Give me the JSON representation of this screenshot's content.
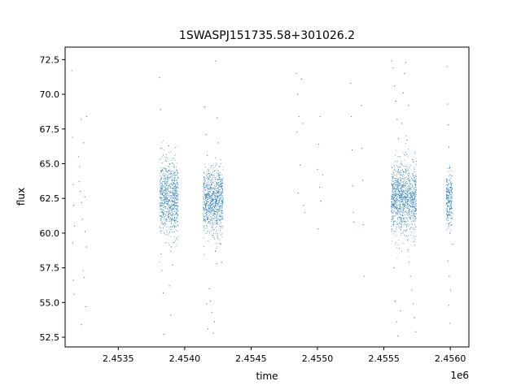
{
  "chart_data": {
    "type": "scatter",
    "title": "1SWASPJ151735.58+301026.2",
    "xlabel": "time",
    "ylabel": "flux",
    "x_offset_label": "1e6",
    "xlim": [
      2453100,
      2456140
    ],
    "ylim": [
      51.8,
      73.4
    ],
    "x_ticks": [
      2453500,
      2454000,
      2454500,
      2455000,
      2455500,
      2456000
    ],
    "x_tick_labels": [
      "2.4535",
      "2.4540",
      "2.4545",
      "2.4550",
      "2.4555",
      "2.4560"
    ],
    "y_ticks": [
      52.5,
      55.0,
      57.5,
      60.0,
      62.5,
      65.0,
      67.5,
      70.0,
      72.5
    ],
    "y_tick_labels": [
      "52.5",
      "55.0",
      "57.5",
      "60.0",
      "62.5",
      "65.0",
      "67.5",
      "70.0",
      "72.5"
    ],
    "grid": false,
    "marker_color": "#1f77b4",
    "series": [
      {
        "points": [
          [
            2453150,
            71.7
          ],
          [
            2453155,
            66.9
          ],
          [
            2453160,
            63.5
          ],
          [
            2453165,
            62.0
          ],
          [
            2453170,
            60.5
          ],
          [
            2453158,
            59.3
          ],
          [
            2453162,
            56.6
          ],
          [
            2453168,
            55.6
          ],
          [
            2453200,
            65.5
          ],
          [
            2453210,
            64.8
          ],
          [
            2453215,
            63.0
          ],
          [
            2453225,
            62.2
          ],
          [
            2453230,
            61.0
          ],
          [
            2453240,
            66.5
          ],
          [
            2453250,
            60.1
          ],
          [
            2453260,
            59.0
          ],
          [
            2453220,
            68.2
          ],
          [
            2453235,
            57.3
          ],
          [
            2453245,
            56.8
          ],
          [
            2453255,
            54.7
          ],
          [
            2453222,
            53.4
          ],
          [
            2453262,
            68.4
          ],
          [
            2453205,
            63.7
          ],
          [
            2453248,
            62.6
          ],
          [
            2453812,
            71.2
          ],
          [
            2453818,
            68.9
          ],
          [
            2453825,
            66.1
          ],
          [
            2453830,
            64.5
          ],
          [
            2453835,
            63.0
          ],
          [
            2453840,
            61.5
          ],
          [
            2453845,
            60.0
          ],
          [
            2453822,
            58.5
          ],
          [
            2453828,
            57.3
          ],
          [
            2453838,
            55.7
          ],
          [
            2453842,
            52.7
          ],
          [
            2453850,
            62.2
          ],
          [
            2453870,
            64.0
          ],
          [
            2453880,
            66.3
          ],
          [
            2453890,
            61.0
          ],
          [
            2453900,
            59.0
          ],
          [
            2453910,
            57.7
          ],
          [
            2453885,
            56.2
          ],
          [
            2453895,
            54.1
          ],
          [
            2453920,
            63.6
          ],
          [
            2453935,
            62.0
          ],
          [
            2453950,
            64.3
          ],
          [
            2454150,
            69.1
          ],
          [
            2454160,
            67.1
          ],
          [
            2454170,
            65.6
          ],
          [
            2454180,
            64.3
          ],
          [
            2454190,
            63.0
          ],
          [
            2454200,
            61.8
          ],
          [
            2454210,
            60.7
          ],
          [
            2454220,
            59.7
          ],
          [
            2454230,
            58.7
          ],
          [
            2454240,
            57.8
          ],
          [
            2454165,
            54.9
          ],
          [
            2454175,
            53.1
          ],
          [
            2454185,
            56.0
          ],
          [
            2454195,
            55.1
          ],
          [
            2454205,
            54.3
          ],
          [
            2454215,
            52.8
          ],
          [
            2454225,
            53.6
          ],
          [
            2454235,
            72.4
          ],
          [
            2454245,
            68.3
          ],
          [
            2454255,
            66.5
          ],
          [
            2454262,
            64.0
          ],
          [
            2454268,
            61.2
          ],
          [
            2454272,
            59.2
          ],
          [
            2454278,
            57.9
          ],
          [
            2454155,
            63.1
          ],
          [
            2454212,
            62.4
          ],
          [
            2454248,
            62.9
          ],
          [
            2454282,
            61.6
          ],
          [
            2454840,
            71.5
          ],
          [
            2454850,
            70.0
          ],
          [
            2454860,
            68.4
          ],
          [
            2454870,
            64.9
          ],
          [
            2454880,
            71.1
          ],
          [
            2454890,
            67.9
          ],
          [
            2454845,
            67.3
          ],
          [
            2454855,
            62.9
          ],
          [
            2454895,
            62.0
          ],
          [
            2454905,
            61.5
          ],
          [
            2455000,
            64.6
          ],
          [
            2455005,
            60.3
          ],
          [
            2455010,
            66.4
          ],
          [
            2455015,
            63.3
          ],
          [
            2455020,
            68.4
          ],
          [
            2455025,
            62.3
          ],
          [
            2455040,
            64.2
          ],
          [
            2455250,
            70.8
          ],
          [
            2455255,
            68.4
          ],
          [
            2455260,
            66.0
          ],
          [
            2455265,
            63.4
          ],
          [
            2455270,
            61.5
          ],
          [
            2455275,
            60.8
          ],
          [
            2455330,
            69.2
          ],
          [
            2455335,
            66.1
          ],
          [
            2455340,
            63.8
          ],
          [
            2455345,
            60.6
          ],
          [
            2455350,
            56.9
          ],
          [
            2455560,
            72.4
          ],
          [
            2455570,
            71.9
          ],
          [
            2455580,
            70.6
          ],
          [
            2455590,
            69.5
          ],
          [
            2455600,
            68.2
          ],
          [
            2455610,
            66.8
          ],
          [
            2455620,
            65.5
          ],
          [
            2455630,
            64.2
          ],
          [
            2455640,
            63.0
          ],
          [
            2455650,
            61.9
          ],
          [
            2455660,
            60.8
          ],
          [
            2455670,
            59.8
          ],
          [
            2455680,
            58.8
          ],
          [
            2455690,
            57.9
          ],
          [
            2455700,
            56.9
          ],
          [
            2455710,
            55.9
          ],
          [
            2455720,
            54.9
          ],
          [
            2455730,
            53.9
          ],
          [
            2455740,
            52.9
          ],
          [
            2455575,
            57.5
          ],
          [
            2455585,
            55.1
          ],
          [
            2455595,
            53.6
          ],
          [
            2455605,
            52.6
          ],
          [
            2455615,
            58.9
          ],
          [
            2455625,
            54.4
          ],
          [
            2455635,
            67.9
          ],
          [
            2455645,
            70.1
          ],
          [
            2455655,
            71.5
          ],
          [
            2455665,
            72.3
          ],
          [
            2455675,
            66.7
          ],
          [
            2455685,
            69.2
          ],
          [
            2455695,
            60.3
          ],
          [
            2455705,
            62.7
          ],
          [
            2455715,
            65.3
          ],
          [
            2455725,
            59.4
          ],
          [
            2455735,
            61.6
          ],
          [
            2455975,
            72.0
          ],
          [
            2455980,
            69.3
          ],
          [
            2455985,
            67.8
          ],
          [
            2455990,
            66.2
          ],
          [
            2455995,
            64.7
          ],
          [
            2456000,
            63.3
          ],
          [
            2456005,
            62.0
          ],
          [
            2456010,
            60.6
          ],
          [
            2456015,
            59.2
          ],
          [
            2455982,
            58.0
          ],
          [
            2455992,
            56.9
          ],
          [
            2456002,
            55.9
          ],
          [
            2455988,
            54.8
          ],
          [
            2455998,
            53.5
          ]
        ]
      }
    ],
    "dense_bands": [
      {
        "x_range": [
          2453812,
          2453952
        ],
        "y_center": 62.5,
        "y_spread": 2.4
      },
      {
        "x_range": [
          2454140,
          2454290
        ],
        "y_center": 62.3,
        "y_spread": 2.1
      },
      {
        "x_range": [
          2455555,
          2455745
        ],
        "y_center": 62.5,
        "y_spread": 2.3
      },
      {
        "x_range": [
          2455970,
          2456015
        ],
        "y_center": 62.4,
        "y_spread": 1.8
      }
    ]
  }
}
